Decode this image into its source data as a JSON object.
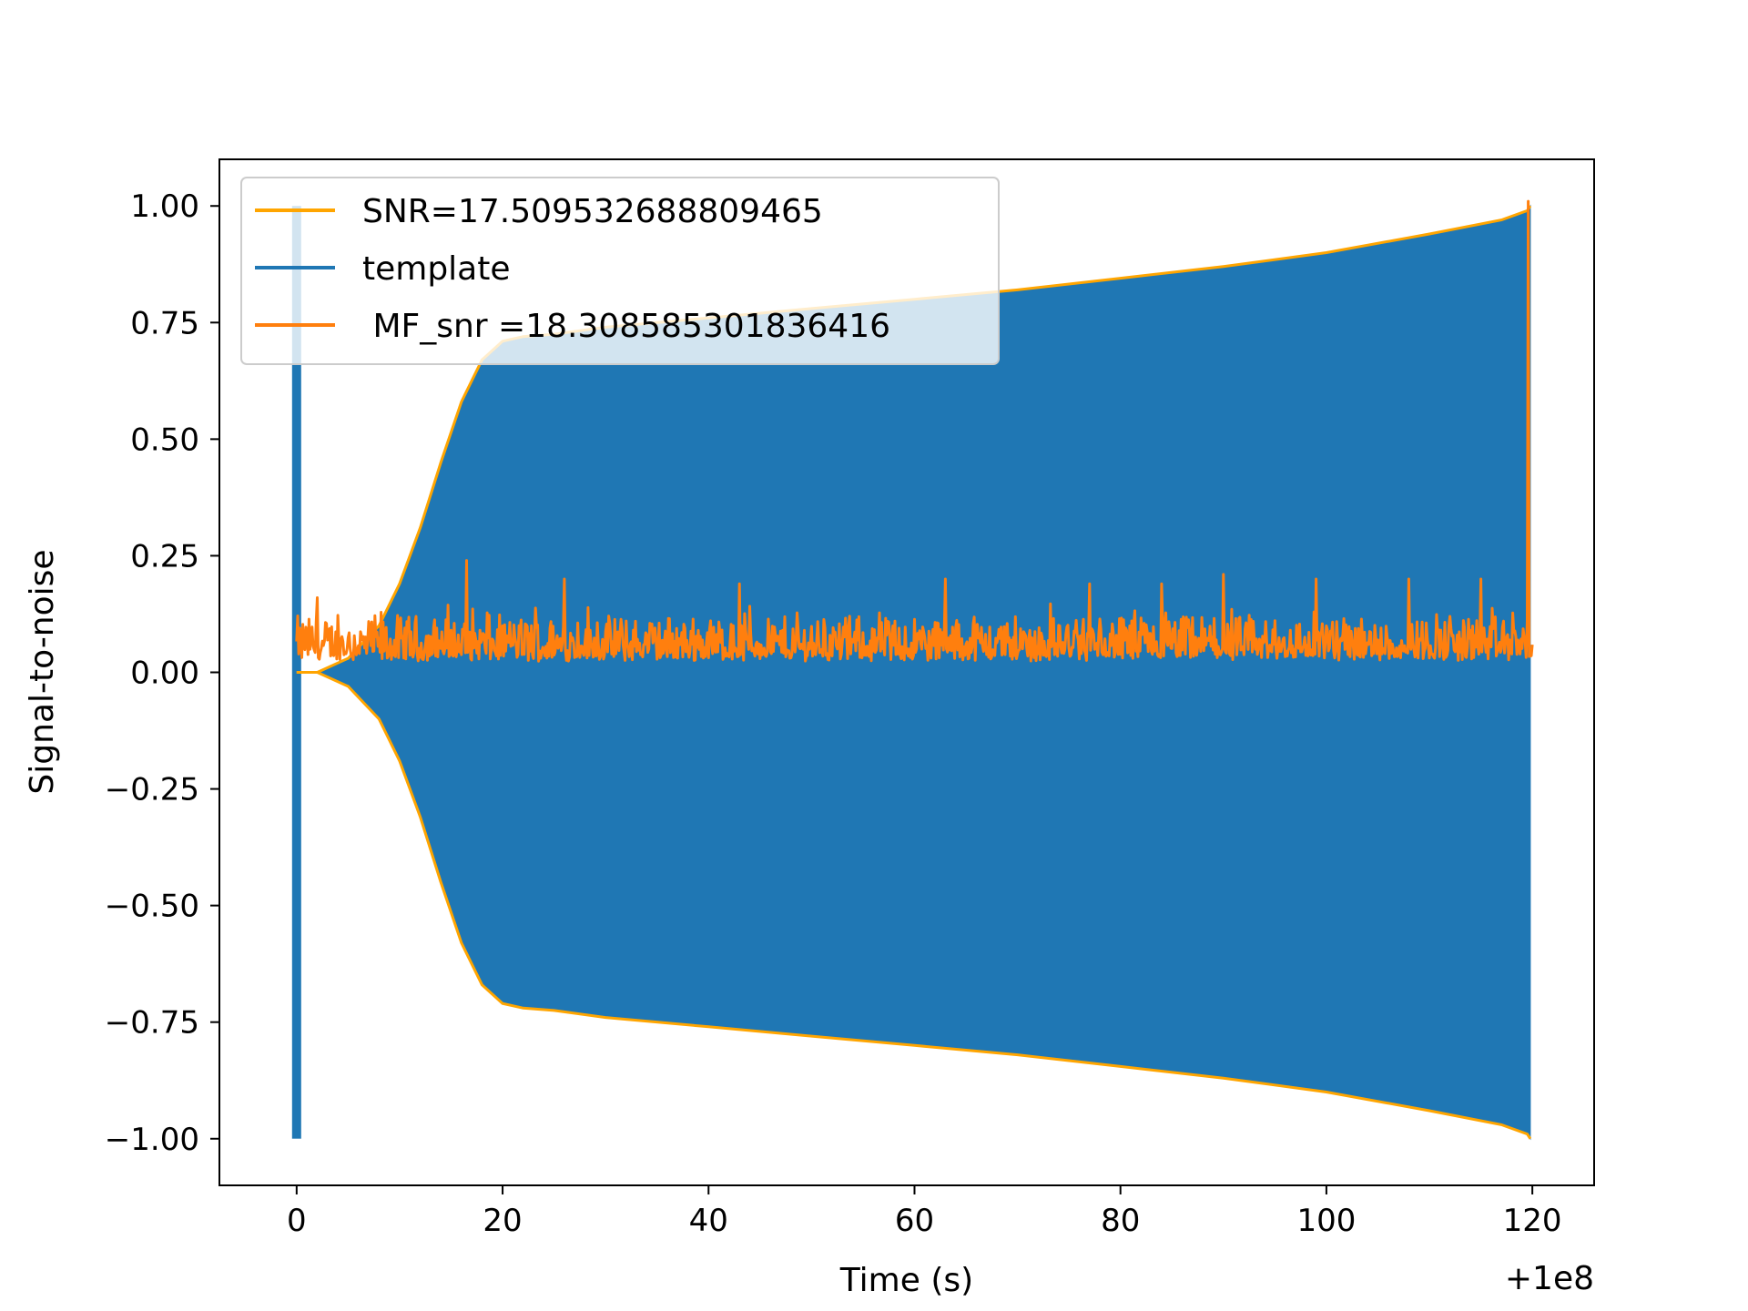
{
  "chart_data": {
    "type": "line",
    "title": "",
    "xlabel": "Time (s)",
    "ylabel": "Signal-to-noise",
    "x_offset_label": "+1e8",
    "xlim": [
      -7.5,
      126.0
    ],
    "ylim": [
      -1.1,
      1.1
    ],
    "x_ticks": [
      0,
      20,
      40,
      60,
      80,
      100,
      120
    ],
    "x_tick_labels": [
      "0",
      "20",
      "40",
      "60",
      "80",
      "100",
      "120"
    ],
    "y_ticks": [
      1.0,
      0.75,
      0.5,
      0.25,
      0.0,
      -0.25,
      -0.5,
      -0.75,
      -1.0
    ],
    "y_tick_labels": [
      "1.00",
      "0.75",
      "0.50",
      "0.25",
      "0.00",
      "−0.25",
      "−0.50",
      "−0.75",
      "−1.00"
    ],
    "grid": false,
    "legend_position": "upper-left",
    "series": [
      {
        "name": "SNR=17.509532688809465",
        "color": "#ffa500",
        "style": "envelope",
        "x": [
          0,
          2,
          5,
          8,
          10,
          12,
          14,
          16,
          18,
          20,
          22,
          25,
          30,
          40,
          50,
          60,
          70,
          80,
          90,
          100,
          110,
          117,
          119.5,
          119.8
        ],
        "upper": [
          0.0,
          0.0,
          0.03,
          0.1,
          0.19,
          0.31,
          0.45,
          0.58,
          0.67,
          0.71,
          0.72,
          0.725,
          0.74,
          0.76,
          0.78,
          0.8,
          0.82,
          0.845,
          0.87,
          0.9,
          0.94,
          0.97,
          0.99,
          1.0
        ],
        "lower": [
          0.0,
          0.0,
          -0.03,
          -0.1,
          -0.19,
          -0.31,
          -0.45,
          -0.58,
          -0.67,
          -0.71,
          -0.72,
          -0.725,
          -0.74,
          -0.76,
          -0.78,
          -0.8,
          -0.82,
          -0.845,
          -0.87,
          -0.9,
          -0.94,
          -0.97,
          -0.99,
          -1.0
        ]
      },
      {
        "name": "template",
        "color": "#1f77b4",
        "style": "filled-oscillation",
        "x": [
          0,
          2,
          5,
          8,
          10,
          12,
          14,
          16,
          18,
          20,
          22,
          25,
          30,
          40,
          50,
          60,
          70,
          80,
          90,
          100,
          110,
          117,
          119.5,
          119.8
        ],
        "upper": [
          0.0,
          0.0,
          0.03,
          0.1,
          0.19,
          0.31,
          0.45,
          0.58,
          0.67,
          0.71,
          0.72,
          0.725,
          0.74,
          0.76,
          0.78,
          0.8,
          0.82,
          0.845,
          0.87,
          0.9,
          0.94,
          0.97,
          0.99,
          1.0
        ],
        "lower": [
          0.0,
          0.0,
          -0.03,
          -0.1,
          -0.19,
          -0.31,
          -0.45,
          -0.58,
          -0.67,
          -0.71,
          -0.72,
          -0.725,
          -0.74,
          -0.76,
          -0.78,
          -0.8,
          -0.82,
          -0.845,
          -0.87,
          -0.9,
          -0.94,
          -0.97,
          -0.99,
          -1.0
        ],
        "initial_spike": {
          "x": 0,
          "upper": 1.0,
          "lower": -1.0
        }
      },
      {
        "name": " MF_snr =18.308585301836416",
        "color": "#ff7f0e",
        "style": "noise",
        "typical_range": [
          0.0,
          0.16
        ],
        "peaks": [
          {
            "x": 2,
            "y": 0.16
          },
          {
            "x": 16.5,
            "y": 0.24
          },
          {
            "x": 26,
            "y": 0.2
          },
          {
            "x": 43,
            "y": 0.19
          },
          {
            "x": 63,
            "y": 0.2
          },
          {
            "x": 77,
            "y": 0.19
          },
          {
            "x": 84,
            "y": 0.19
          },
          {
            "x": 90,
            "y": 0.21
          },
          {
            "x": 99,
            "y": 0.2
          },
          {
            "x": 108,
            "y": 0.2
          },
          {
            "x": 115,
            "y": 0.2
          },
          {
            "x": 119.6,
            "y": 1.01
          }
        ]
      }
    ]
  }
}
